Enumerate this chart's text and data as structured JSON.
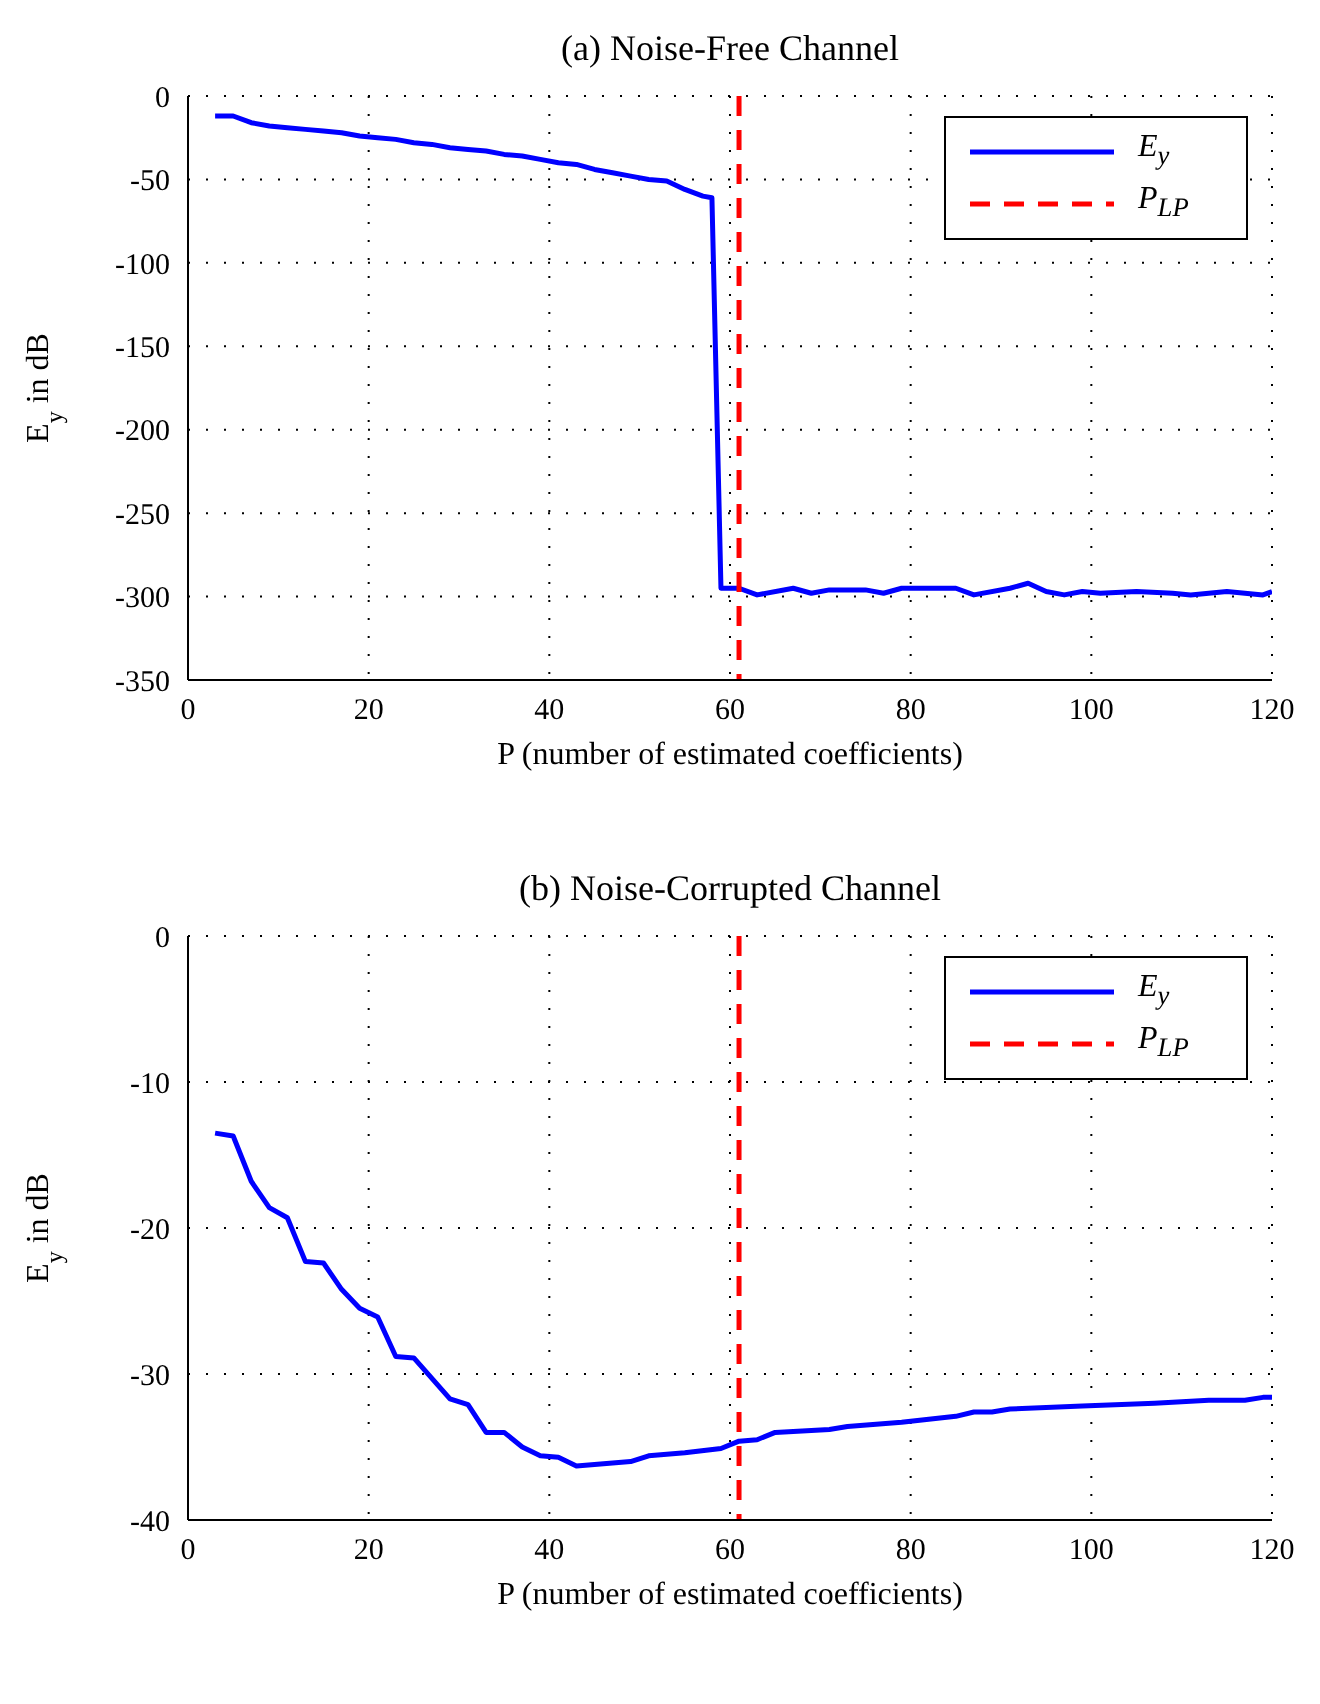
{
  "chart_data": [
    {
      "type": "line",
      "title": "(a)  Noise-Free Channel",
      "xlabel": "P  (number of estimated coefficients)",
      "ylabel": "E$_{y}$ in dB",
      "xlim": [
        0,
        120
      ],
      "xticks": [
        0,
        20,
        40,
        60,
        80,
        100,
        120
      ],
      "ylim": [
        -350,
        0
      ],
      "yticks": [
        -350,
        -300,
        -250,
        -200,
        -150,
        -100,
        -50,
        0
      ],
      "grid": true,
      "legend": "top right",
      "marker": "none",
      "series": [
        {
          "name": "E$_{y}$",
          "color": "#0000ff",
          "line_style": "solid",
          "x": [
            3,
            5,
            7,
            9,
            11,
            13,
            15,
            17,
            19,
            21,
            23,
            25,
            27,
            29,
            31,
            33,
            35,
            37,
            39,
            41,
            43,
            45,
            47,
            49,
            51,
            53,
            55,
            57,
            58,
            59,
            61,
            63,
            67,
            69,
            71,
            75,
            77,
            79,
            83,
            85,
            87,
            91,
            93,
            95,
            97,
            99,
            101,
            105,
            109,
            111,
            115,
            119,
            120
          ],
          "values": [
            -12,
            -12,
            -16,
            -18,
            -19,
            -20,
            -21,
            -22,
            -24,
            -25,
            -26,
            -28,
            -29,
            -31,
            -32,
            -33,
            -35,
            -36,
            -38,
            -40,
            -41,
            -44,
            -46,
            -48,
            -50,
            -51,
            -56,
            -60,
            -61,
            -295,
            -295,
            -299,
            -295,
            -298,
            -296,
            -296,
            -298,
            -295,
            -295,
            -295,
            -299,
            -295,
            -292,
            -297,
            -299,
            -297,
            -298,
            -297,
            -298,
            -299,
            -297,
            -299,
            -297
          ]
        },
        {
          "name": "P$_{LP}$",
          "color": "#ff0000",
          "line_style": "dashed",
          "x": [
            61,
            61
          ],
          "values": [
            0,
            -350
          ]
        }
      ]
    },
    {
      "type": "line",
      "title": "(b)  Noise-Corrupted Channel",
      "xlabel": "P  (number of estimated coefficients)",
      "ylabel": "E$_{y}$ in dB",
      "xlim": [
        0,
        120
      ],
      "xticks": [
        0,
        20,
        40,
        60,
        80,
        100,
        120
      ],
      "ylim": [
        -40,
        0
      ],
      "yticks": [
        -40,
        -30,
        -20,
        -10,
        0
      ],
      "grid": true,
      "legend": "top right",
      "marker": "none",
      "series": [
        {
          "name": "E$_{y}$",
          "color": "#0000ff",
          "line_style": "solid",
          "x": [
            3,
            5,
            7,
            9,
            11,
            13,
            15,
            17,
            19,
            21,
            23,
            25,
            27,
            29,
            31,
            33,
            35,
            37,
            39,
            41,
            43,
            45,
            49,
            51,
            55,
            59,
            61,
            63,
            65,
            71,
            73,
            79,
            85,
            87,
            89,
            91,
            99,
            107,
            113,
            117,
            119,
            120
          ],
          "values": [
            -13.5,
            -13.7,
            -16.8,
            -18.6,
            -19.3,
            -22.3,
            -22.4,
            -24.2,
            -25.5,
            -26.1,
            -28.8,
            -28.9,
            -30.3,
            -31.7,
            -32.1,
            -34.0,
            -34.0,
            -35.0,
            -35.6,
            -35.7,
            -36.3,
            -36.2,
            -36.0,
            -35.6,
            -35.4,
            -35.1,
            -34.6,
            -34.5,
            -34.0,
            -33.8,
            -33.6,
            -33.3,
            -32.9,
            -32.6,
            -32.6,
            -32.4,
            -32.2,
            -32.0,
            -31.8,
            -31.8,
            -31.6,
            -31.6
          ]
        },
        {
          "name": "P$_{LP}$",
          "color": "#ff0000",
          "line_style": "dashed",
          "x": [
            61,
            61
          ],
          "values": [
            0,
            -40
          ]
        }
      ]
    }
  ]
}
